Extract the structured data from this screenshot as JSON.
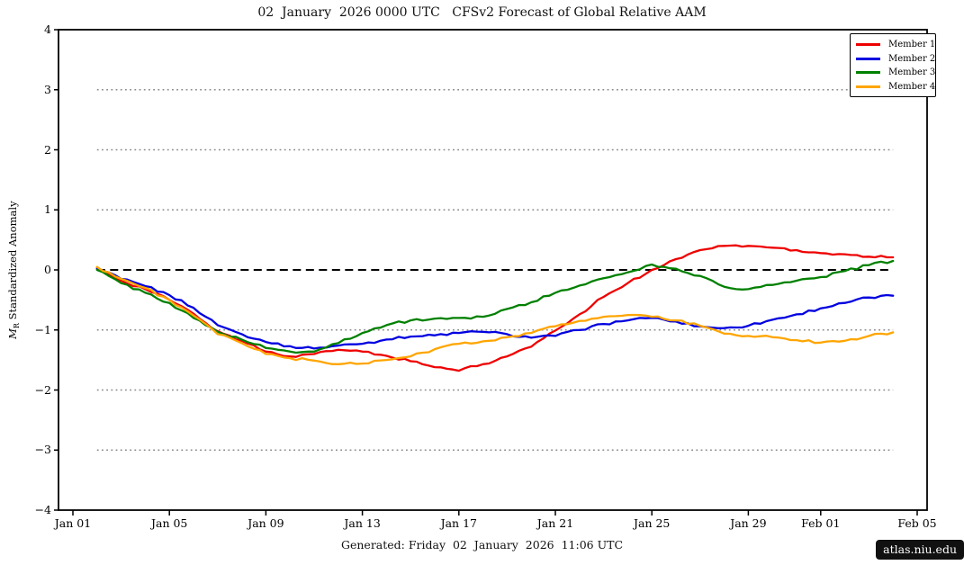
{
  "title": "02  January  2026 0000 UTC   CFSv2 Forecast of Global Relative AAM",
  "footer": "Generated: Friday  02  January  2026  11:06 UTC",
  "badge": "atlas.niu.edu",
  "y_axis": {
    "label_prefix": "M",
    "label_subscript": "R",
    "label_text": " Standardized Anomaly",
    "tick_labels": [
      "4",
      "3",
      "2",
      "1",
      "0",
      "−1",
      "−2",
      "−3",
      "−4"
    ],
    "tick_values": [
      4,
      3,
      2,
      1,
      0,
      -1,
      -2,
      -3,
      -4
    ],
    "range": [
      -4,
      4
    ]
  },
  "x_axis": {
    "tick_labels": [
      "Jan 01",
      "Jan 05",
      "Jan 09",
      "Jan 13",
      "Jan 17",
      "Jan 21",
      "Jan 25",
      "Jan 29",
      "Feb 01",
      "Feb 05"
    ],
    "tick_days": [
      0,
      4,
      8,
      12,
      16,
      20,
      24,
      28,
      31,
      35
    ]
  },
  "grid": {
    "dotted_values": [
      3,
      2,
      1,
      -1,
      -2,
      -3
    ],
    "dotted_color": "#8a8a8a",
    "zero_value": 0,
    "zero_color": "#000000"
  },
  "legend": {
    "items": [
      {
        "label": "Member 1",
        "color": "#ee0000"
      },
      {
        "label": "Member 2",
        "color": "#0000e0"
      },
      {
        "label": "Member 3",
        "color": "#008000"
      },
      {
        "label": "Member 4",
        "color": "#ffa500"
      }
    ]
  },
  "chart_data": {
    "type": "line",
    "title": "02  January  2026 0000 UTC   CFSv2 Forecast of Global Relative AAM",
    "xlabel": "",
    "ylabel": "M_R Standardized Anomaly",
    "ylim": [
      -4,
      4
    ],
    "x_range_labels": [
      "Jan 01",
      "Feb 05"
    ],
    "grid": "horizontal dotted at ±1, ±2, ±3; dashed black zero line",
    "legend_position": "upper right",
    "x": [
      "Jan 02",
      "Jan 03",
      "Jan 04",
      "Jan 05",
      "Jan 06",
      "Jan 07",
      "Jan 08",
      "Jan 09",
      "Jan 10",
      "Jan 11",
      "Jan 12",
      "Jan 13",
      "Jan 14",
      "Jan 15",
      "Jan 16",
      "Jan 17",
      "Jan 18",
      "Jan 19",
      "Jan 20",
      "Jan 21",
      "Jan 22",
      "Jan 23",
      "Jan 24",
      "Jan 25",
      "Jan 26",
      "Jan 27",
      "Jan 28",
      "Jan 29",
      "Jan 30",
      "Jan 31",
      "Feb 01",
      "Feb 02",
      "Feb 03",
      "Feb 04"
    ],
    "series": [
      {
        "name": "Member 1",
        "color": "#ee0000",
        "values": [
          0.03,
          -0.18,
          -0.32,
          -0.5,
          -0.73,
          -1.02,
          -1.18,
          -1.36,
          -1.44,
          -1.4,
          -1.33,
          -1.36,
          -1.43,
          -1.52,
          -1.62,
          -1.68,
          -1.57,
          -1.44,
          -1.28,
          -1.01,
          -0.74,
          -0.45,
          -0.22,
          0.0,
          0.18,
          0.33,
          0.4,
          0.4,
          0.37,
          0.33,
          0.28,
          0.26,
          0.22,
          0.21
        ]
      },
      {
        "name": "Member 2",
        "color": "#0000e0",
        "values": [
          0.02,
          -0.15,
          -0.27,
          -0.42,
          -0.63,
          -0.92,
          -1.07,
          -1.2,
          -1.27,
          -1.31,
          -1.26,
          -1.23,
          -1.16,
          -1.11,
          -1.09,
          -1.05,
          -1.03,
          -1.07,
          -1.13,
          -1.1,
          -1.0,
          -0.9,
          -0.84,
          -0.8,
          -0.86,
          -0.94,
          -0.97,
          -0.93,
          -0.83,
          -0.74,
          -0.64,
          -0.55,
          -0.46,
          -0.43
        ]
      },
      {
        "name": "Member 3",
        "color": "#008000",
        "values": [
          0.0,
          -0.22,
          -0.38,
          -0.55,
          -0.8,
          -1.03,
          -1.16,
          -1.3,
          -1.36,
          -1.36,
          -1.22,
          -1.05,
          -0.92,
          -0.84,
          -0.81,
          -0.8,
          -0.78,
          -0.65,
          -0.54,
          -0.38,
          -0.26,
          -0.14,
          -0.04,
          0.09,
          0.02,
          -0.1,
          -0.28,
          -0.32,
          -0.25,
          -0.18,
          -0.12,
          -0.02,
          0.08,
          0.15
        ]
      },
      {
        "name": "Member 4",
        "color": "#ffa500",
        "values": [
          0.05,
          -0.15,
          -0.3,
          -0.5,
          -0.76,
          -1.07,
          -1.22,
          -1.4,
          -1.47,
          -1.51,
          -1.57,
          -1.56,
          -1.5,
          -1.44,
          -1.32,
          -1.23,
          -1.19,
          -1.12,
          -1.05,
          -0.94,
          -0.85,
          -0.78,
          -0.75,
          -0.78,
          -0.84,
          -0.93,
          -1.06,
          -1.1,
          -1.12,
          -1.17,
          -1.21,
          -1.18,
          -1.1,
          -1.04
        ]
      }
    ]
  }
}
